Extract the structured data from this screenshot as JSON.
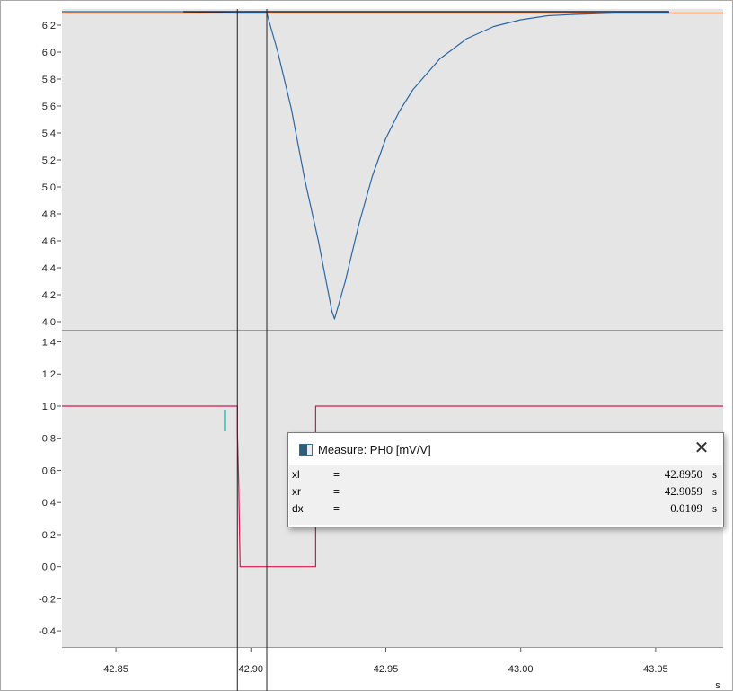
{
  "colors": {
    "plot_background": "#e5e5e5",
    "top_trace": "#2a66a5",
    "top_reference": "#c8531f",
    "bottom_trace": "#d8174d",
    "cursor": "#222222",
    "marker": "#55d0bf"
  },
  "measure": {
    "title": "Measure: PH0 [mV/V]",
    "rows": [
      {
        "name": "xl",
        "eq": "=",
        "value": "42.8950",
        "unit": "s"
      },
      {
        "name": "xr",
        "eq": "=",
        "value": "42.9059",
        "unit": "s"
      },
      {
        "name": "dx",
        "eq": "=",
        "value": "0.0109",
        "unit": "s"
      }
    ]
  },
  "chart_data": {
    "type": "line",
    "xlabel": "s",
    "xlim": [
      42.83,
      43.075
    ],
    "x_ticks": [
      "42.85",
      "42.90",
      "42.95",
      "43.00",
      "43.05"
    ],
    "cursors": [
      42.895,
      42.9059
    ],
    "panels": [
      {
        "ylim": [
          3.94,
          6.32
        ],
        "y_ticks": [
          "6.2",
          "6.0",
          "5.8",
          "5.6",
          "5.4",
          "5.2",
          "5.0",
          "4.8",
          "4.6",
          "4.4",
          "4.2",
          "4.0"
        ],
        "series": [
          {
            "x": [
              42.83,
              42.875,
              42.895,
              42.905,
              42.9059,
              42.91,
              42.915,
              42.92,
              42.925,
              42.93,
              42.931,
              42.935,
              42.94,
              42.945,
              42.95,
              42.955,
              42.96,
              42.97,
              42.98,
              42.99,
              43.0,
              43.01,
              43.02,
              43.035,
              43.055
            ],
            "y": [
              6.3,
              6.3,
              6.29,
              6.29,
              6.29,
              6.0,
              5.58,
              5.05,
              4.6,
              4.08,
              4.02,
              4.3,
              4.72,
              5.08,
              5.36,
              5.56,
              5.72,
              5.95,
              6.1,
              6.19,
              6.24,
              6.27,
              6.28,
              6.29,
              6.29
            ]
          },
          {
            "x": [
              42.83,
              43.075
            ],
            "y": [
              6.29,
              6.29
            ]
          }
        ]
      },
      {
        "ylim": [
          -0.5,
          1.47
        ],
        "y_ticks": [
          "1.4",
          "1.2",
          "1.0",
          "0.8",
          "0.6",
          "0.4",
          "0.2",
          "0.0",
          "-0.2",
          "-0.4"
        ],
        "series": [
          {
            "x": [
              42.83,
              42.895,
              42.895,
              42.8955,
              42.896,
              42.9235,
              42.924,
              42.924,
              43.075
            ],
            "y": [
              1.0,
              1.0,
              0.84,
              0.5,
              0.0,
              0.0,
              0.0,
              1.0,
              1.0
            ]
          }
        ]
      }
    ]
  }
}
